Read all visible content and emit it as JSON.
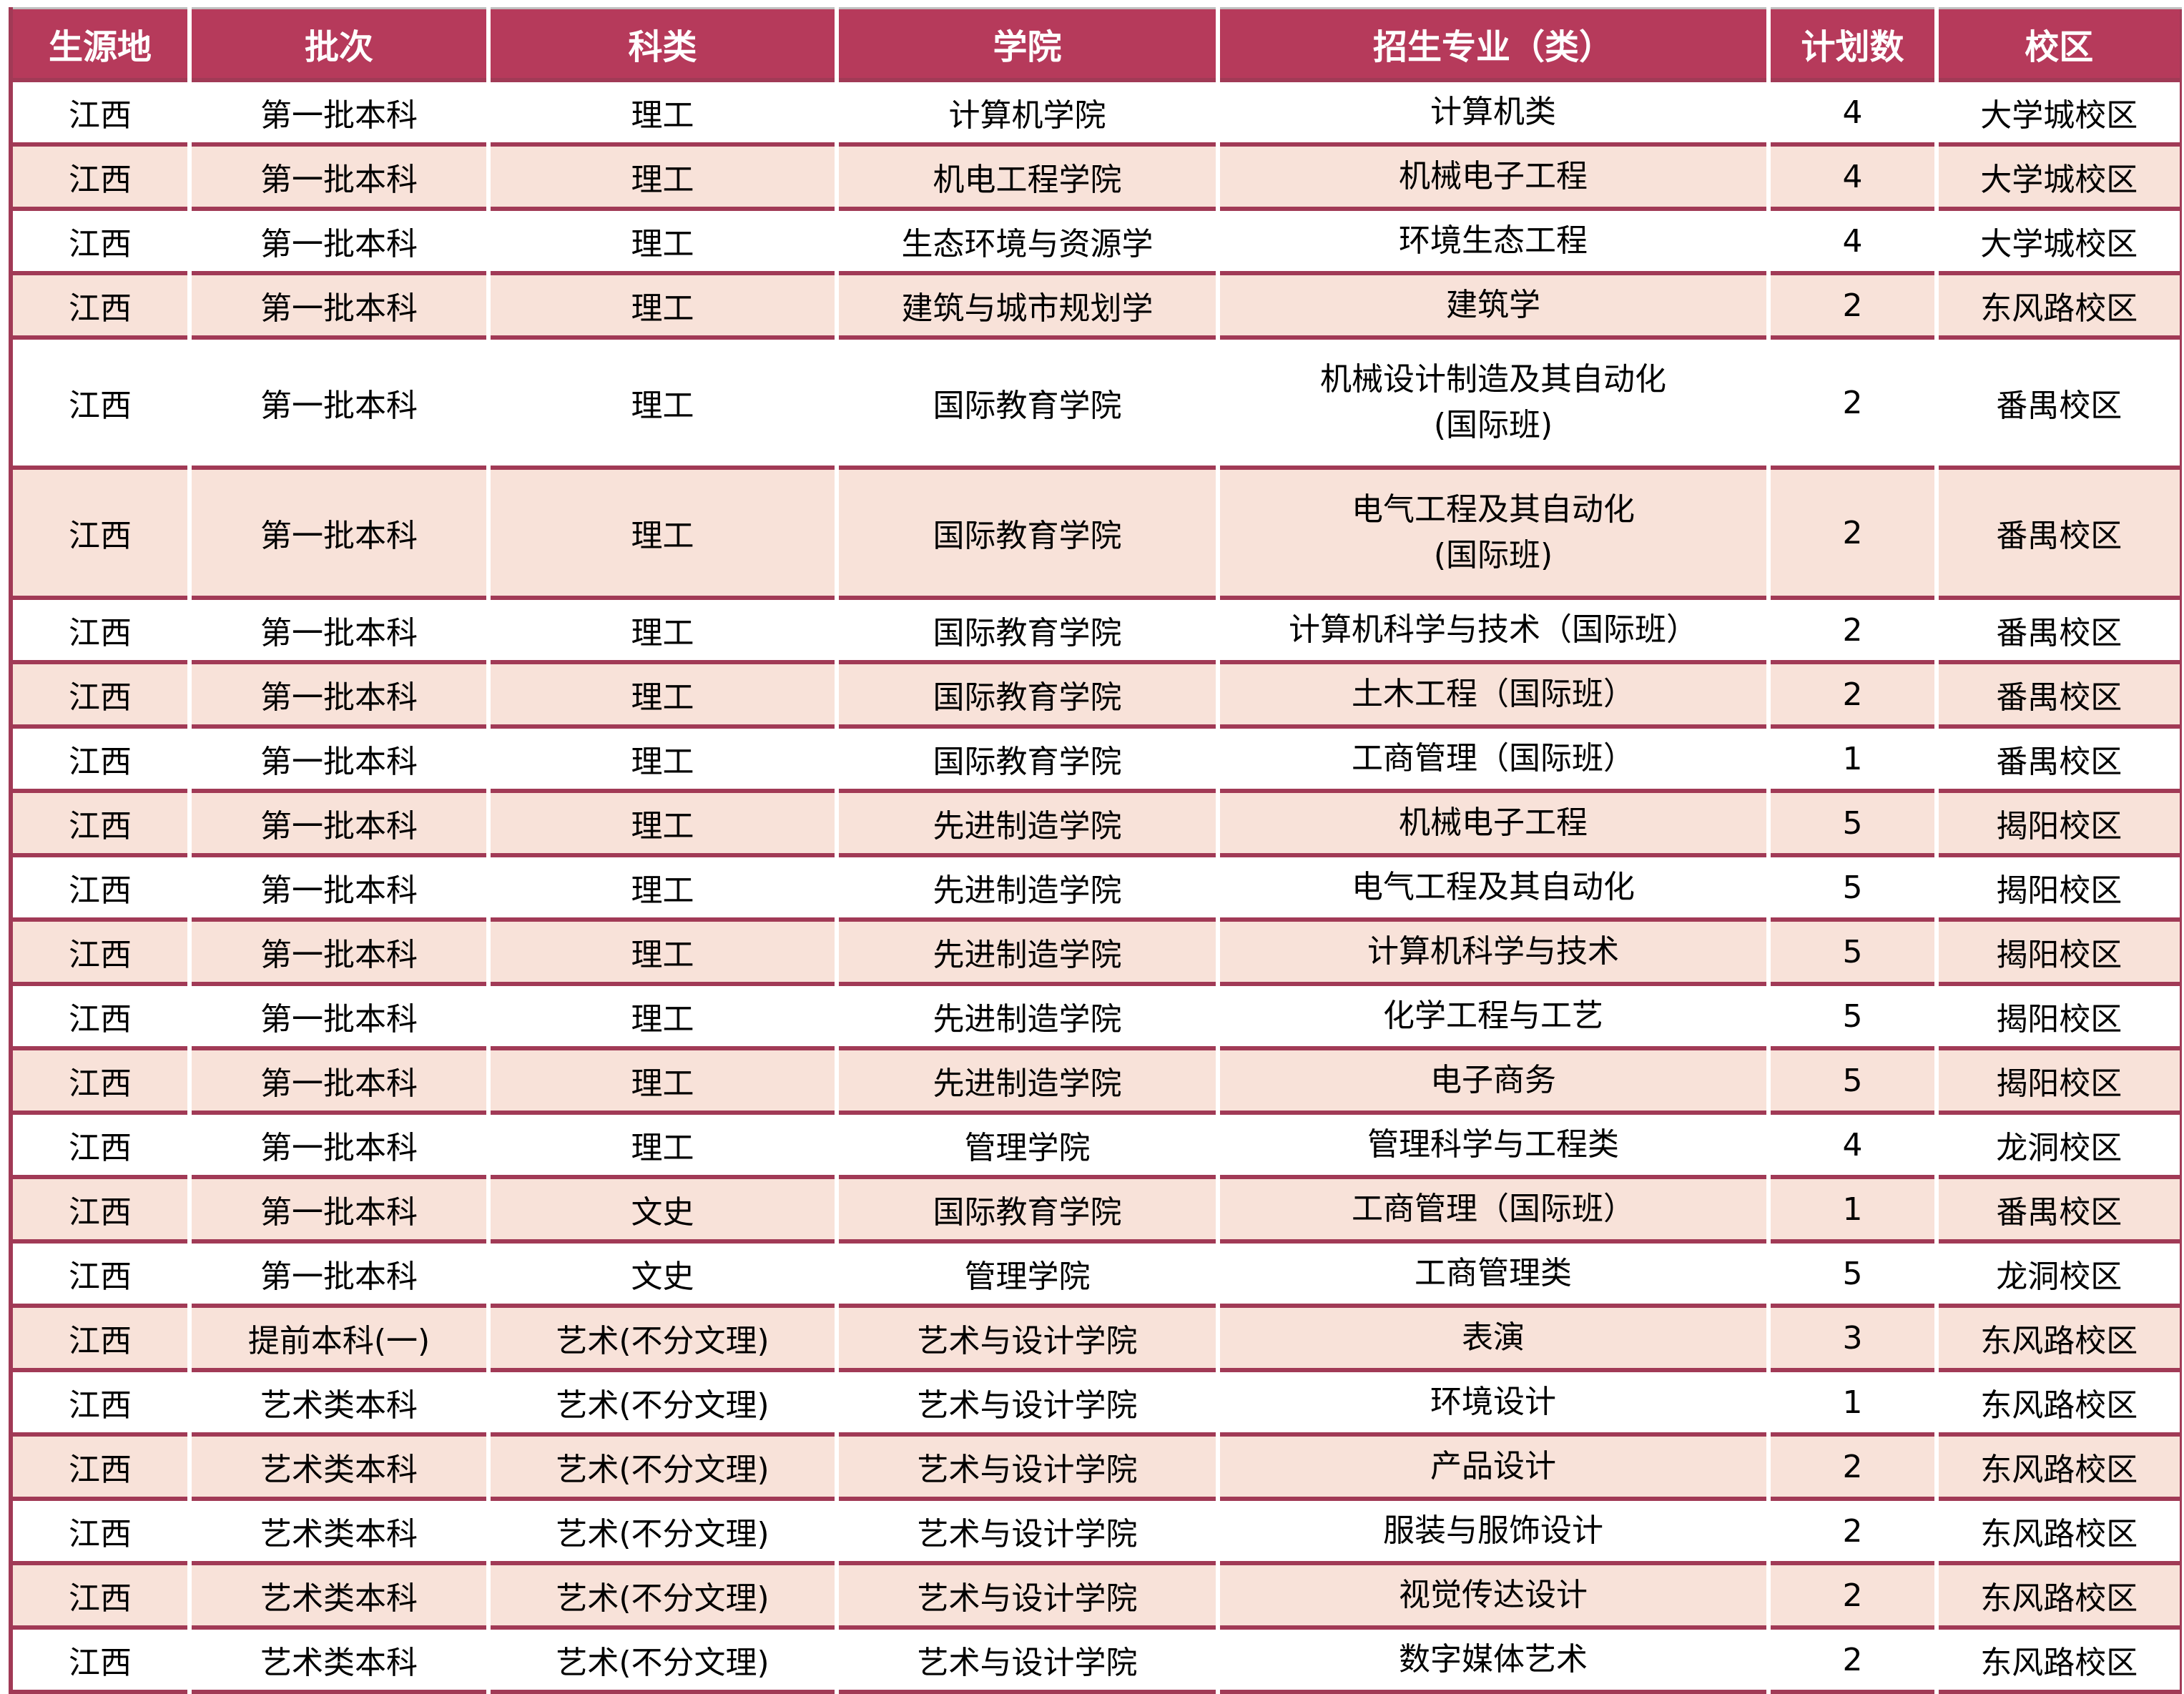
{
  "colors": {
    "header_bg": "#B63A5B",
    "header_text": "#FFFFFF",
    "row_bg_white": "#FFFFFF",
    "row_bg_pink": "#F8E2D9",
    "grid_border": "#A13A56",
    "column_separator": "#FFFFFF",
    "body_text": "#000000"
  },
  "table": {
    "columns": [
      {
        "key": "origin",
        "label": "生源地"
      },
      {
        "key": "batch",
        "label": "批次"
      },
      {
        "key": "category",
        "label": "科类"
      },
      {
        "key": "college",
        "label": "学院"
      },
      {
        "key": "major",
        "label": "招生专业（类）"
      },
      {
        "key": "plan",
        "label": "计划数"
      },
      {
        "key": "campus",
        "label": "校区"
      }
    ],
    "rows": [
      {
        "origin": "江西",
        "batch": "第一批本科",
        "category": "理工",
        "college": "计算机学院",
        "major": "计算机类",
        "plan": 4,
        "campus": "大学城校区",
        "shade": "white",
        "tall": false
      },
      {
        "origin": "江西",
        "batch": "第一批本科",
        "category": "理工",
        "college": "机电工程学院",
        "major": "机械电子工程",
        "plan": 4,
        "campus": "大学城校区",
        "shade": "pink",
        "tall": false
      },
      {
        "origin": "江西",
        "batch": "第一批本科",
        "category": "理工",
        "college": "生态环境与资源学",
        "major": "环境生态工程",
        "plan": 4,
        "campus": "大学城校区",
        "shade": "white",
        "tall": false
      },
      {
        "origin": "江西",
        "batch": "第一批本科",
        "category": "理工",
        "college": "建筑与城市规划学",
        "major": "建筑学",
        "plan": 2,
        "campus": "东风路校区",
        "shade": "pink",
        "tall": false
      },
      {
        "origin": "江西",
        "batch": "第一批本科",
        "category": "理工",
        "college": "国际教育学院",
        "major": "机械设计制造及其自动化\n(国际班)",
        "plan": 2,
        "campus": "番禺校区",
        "shade": "white",
        "tall": true
      },
      {
        "origin": "江西",
        "batch": "第一批本科",
        "category": "理工",
        "college": "国际教育学院",
        "major": "电气工程及其自动化\n(国际班)",
        "plan": 2,
        "campus": "番禺校区",
        "shade": "pink",
        "tall": true
      },
      {
        "origin": "江西",
        "batch": "第一批本科",
        "category": "理工",
        "college": "国际教育学院",
        "major": "计算机科学与技术（国际班）",
        "plan": 2,
        "campus": "番禺校区",
        "shade": "white",
        "tall": false
      },
      {
        "origin": "江西",
        "batch": "第一批本科",
        "category": "理工",
        "college": "国际教育学院",
        "major": "土木工程（国际班）",
        "plan": 2,
        "campus": "番禺校区",
        "shade": "pink",
        "tall": false
      },
      {
        "origin": "江西",
        "batch": "第一批本科",
        "category": "理工",
        "college": "国际教育学院",
        "major": "工商管理（国际班）",
        "plan": 1,
        "campus": "番禺校区",
        "shade": "white",
        "tall": false
      },
      {
        "origin": "江西",
        "batch": "第一批本科",
        "category": "理工",
        "college": "先进制造学院",
        "major": "机械电子工程",
        "plan": 5,
        "campus": "揭阳校区",
        "shade": "pink",
        "tall": false
      },
      {
        "origin": "江西",
        "batch": "第一批本科",
        "category": "理工",
        "college": "先进制造学院",
        "major": "电气工程及其自动化",
        "plan": 5,
        "campus": "揭阳校区",
        "shade": "white",
        "tall": false
      },
      {
        "origin": "江西",
        "batch": "第一批本科",
        "category": "理工",
        "college": "先进制造学院",
        "major": "计算机科学与技术",
        "plan": 5,
        "campus": "揭阳校区",
        "shade": "pink",
        "tall": false
      },
      {
        "origin": "江西",
        "batch": "第一批本科",
        "category": "理工",
        "college": "先进制造学院",
        "major": "化学工程与工艺",
        "plan": 5,
        "campus": "揭阳校区",
        "shade": "white",
        "tall": false
      },
      {
        "origin": "江西",
        "batch": "第一批本科",
        "category": "理工",
        "college": "先进制造学院",
        "major": "电子商务",
        "plan": 5,
        "campus": "揭阳校区",
        "shade": "pink",
        "tall": false
      },
      {
        "origin": "江西",
        "batch": "第一批本科",
        "category": "理工",
        "college": "管理学院",
        "major": "管理科学与工程类",
        "plan": 4,
        "campus": "龙洞校区",
        "shade": "white",
        "tall": false
      },
      {
        "origin": "江西",
        "batch": "第一批本科",
        "category": "文史",
        "college": "国际教育学院",
        "major": "工商管理（国际班）",
        "plan": 1,
        "campus": "番禺校区",
        "shade": "pink",
        "tall": false
      },
      {
        "origin": "江西",
        "batch": "第一批本科",
        "category": "文史",
        "college": "管理学院",
        "major": "工商管理类",
        "plan": 5,
        "campus": "龙洞校区",
        "shade": "white",
        "tall": false
      },
      {
        "origin": "江西",
        "batch": "提前本科(一)",
        "category": "艺术(不分文理)",
        "college": "艺术与设计学院",
        "major": "表演",
        "plan": 3,
        "campus": "东风路校区",
        "shade": "pink",
        "tall": false
      },
      {
        "origin": "江西",
        "batch": "艺术类本科",
        "category": "艺术(不分文理)",
        "college": "艺术与设计学院",
        "major": "环境设计",
        "plan": 1,
        "campus": "东风路校区",
        "shade": "white",
        "tall": false
      },
      {
        "origin": "江西",
        "batch": "艺术类本科",
        "category": "艺术(不分文理)",
        "college": "艺术与设计学院",
        "major": "产品设计",
        "plan": 2,
        "campus": "东风路校区",
        "shade": "pink",
        "tall": false
      },
      {
        "origin": "江西",
        "batch": "艺术类本科",
        "category": "艺术(不分文理)",
        "college": "艺术与设计学院",
        "major": "服装与服饰设计",
        "plan": 2,
        "campus": "东风路校区",
        "shade": "white",
        "tall": false
      },
      {
        "origin": "江西",
        "batch": "艺术类本科",
        "category": "艺术(不分文理)",
        "college": "艺术与设计学院",
        "major": "视觉传达设计",
        "plan": 2,
        "campus": "东风路校区",
        "shade": "pink",
        "tall": false
      },
      {
        "origin": "江西",
        "batch": "艺术类本科",
        "category": "艺术(不分文理)",
        "college": "艺术与设计学院",
        "major": "数字媒体艺术",
        "plan": 2,
        "campus": "东风路校区",
        "shade": "white",
        "tall": false
      }
    ]
  }
}
